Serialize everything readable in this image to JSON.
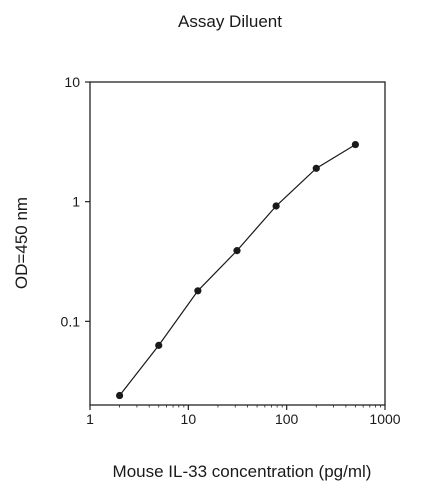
{
  "chart_data": {
    "type": "line",
    "title": "Assay Diluent",
    "xlabel": "Mouse IL-33 concentration (pg/ml)",
    "ylabel": "OD=450 nm",
    "xscale": "log",
    "yscale": "log",
    "xlim": [
      1,
      1000
    ],
    "ylim": [
      0.02,
      10
    ],
    "xticks": [
      1,
      10,
      100,
      1000
    ],
    "xtick_labels": [
      "1",
      "10",
      "100",
      "1000"
    ],
    "yticks": [
      0.1,
      1,
      10
    ],
    "ytick_labels": [
      "0.1",
      "1",
      "10"
    ],
    "grid": false,
    "legend": "none",
    "series": [
      {
        "x": [
          2,
          5,
          12.5,
          31.25,
          78.1,
          200,
          500
        ],
        "y": [
          0.024,
          0.063,
          0.18,
          0.39,
          0.92,
          1.9,
          3.0
        ],
        "color": "#1a1a1a",
        "marker": "circle"
      }
    ]
  }
}
